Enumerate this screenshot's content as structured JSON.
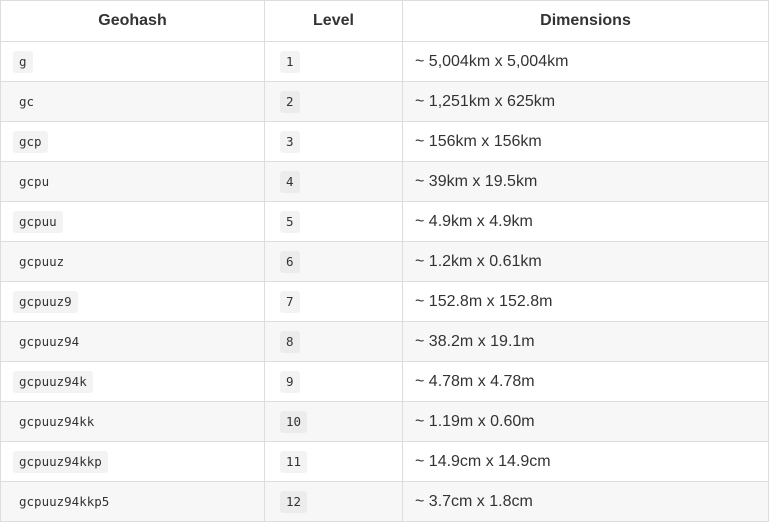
{
  "table": {
    "headers": {
      "geohash": "Geohash",
      "level": "Level",
      "dimensions": "Dimensions"
    },
    "rows": [
      {
        "geohash": "g",
        "level": "1",
        "dimensions": "~ 5,004km x 5,004km"
      },
      {
        "geohash": "gc",
        "level": "2",
        "dimensions": "~ 1,251km x 625km"
      },
      {
        "geohash": "gcp",
        "level": "3",
        "dimensions": "~ 156km x 156km"
      },
      {
        "geohash": "gcpu",
        "level": "4",
        "dimensions": "~ 39km x 19.5km"
      },
      {
        "geohash": "gcpuu",
        "level": "5",
        "dimensions": "~ 4.9km x 4.9km"
      },
      {
        "geohash": "gcpuuz",
        "level": "6",
        "dimensions": "~ 1.2km x 0.61km"
      },
      {
        "geohash": "gcpuuz9",
        "level": "7",
        "dimensions": "~ 152.8m x 152.8m"
      },
      {
        "geohash": "gcpuuz94",
        "level": "8",
        "dimensions": "~ 38.2m x 19.1m"
      },
      {
        "geohash": "gcpuuz94k",
        "level": "9",
        "dimensions": "~ 4.78m x 4.78m"
      },
      {
        "geohash": "gcpuuz94kk",
        "level": "10",
        "dimensions": "~ 1.19m x 0.60m"
      },
      {
        "geohash": "gcpuuz94kkp",
        "level": "11",
        "dimensions": "~ 14.9cm x 14.9cm"
      },
      {
        "geohash": "gcpuuz94kkp5",
        "level": "12",
        "dimensions": "~ 3.7cm x 1.8cm"
      }
    ]
  }
}
